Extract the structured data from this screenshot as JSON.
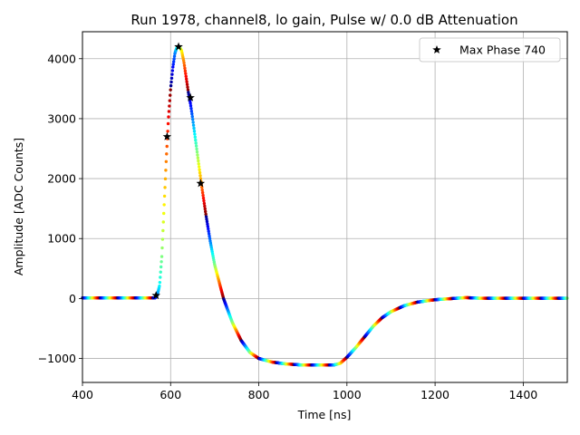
{
  "chart_data": {
    "type": "scatter",
    "title": "Run 1978, channel8, lo gain, Pulse w/ 0.0 dB Attenuation",
    "xlabel": "Time [ns]",
    "ylabel": "Amplitude [ADC Counts]",
    "xlim": [
      400,
      1500
    ],
    "ylim": [
      -1400,
      4450
    ],
    "xticks": [
      400,
      600,
      800,
      1000,
      1200,
      1400
    ],
    "yticks": [
      -1000,
      0,
      1000,
      2000,
      3000,
      4000
    ],
    "ytick_labels": [
      "−1000",
      "0",
      "1000",
      "2000",
      "3000",
      "4000"
    ],
    "grid": true,
    "legend": {
      "position": "top-right",
      "entries": [
        "Max Phase 740"
      ]
    },
    "colormap": "jet",
    "series": [
      {
        "kind": "pulse-waveform",
        "x": [
          400,
          565,
          570,
          575,
          580,
          585,
          590,
          595,
          600,
          605,
          610,
          615,
          620,
          625,
          630,
          635,
          640,
          645,
          650,
          660,
          670,
          680,
          690,
          700,
          720,
          740,
          760,
          780,
          800,
          830,
          860,
          900,
          940,
          970,
          985,
          1000,
          1020,
          1040,
          1060,
          1080,
          1100,
          1130,
          1160,
          1200,
          1240,
          1270,
          1300,
          1400,
          1500
        ],
        "y": [
          10,
          10,
          60,
          220,
          700,
          1500,
          2300,
          3000,
          3500,
          3850,
          4100,
          4200,
          4200,
          4130,
          3950,
          3700,
          3450,
          3250,
          3000,
          2450,
          1900,
          1400,
          950,
          560,
          0,
          -400,
          -700,
          -900,
          -1000,
          -1060,
          -1090,
          -1110,
          -1110,
          -1110,
          -1080,
          -980,
          -820,
          -640,
          -460,
          -320,
          -220,
          -120,
          -60,
          -20,
          0,
          15,
          5,
          5,
          5
        ]
      },
      {
        "name": "Max Phase 740",
        "kind": "markers",
        "marker": "star",
        "x": [
          567,
          592,
          618,
          645,
          668
        ],
        "y": [
          50,
          2700,
          4200,
          3350,
          1920
        ]
      }
    ]
  }
}
